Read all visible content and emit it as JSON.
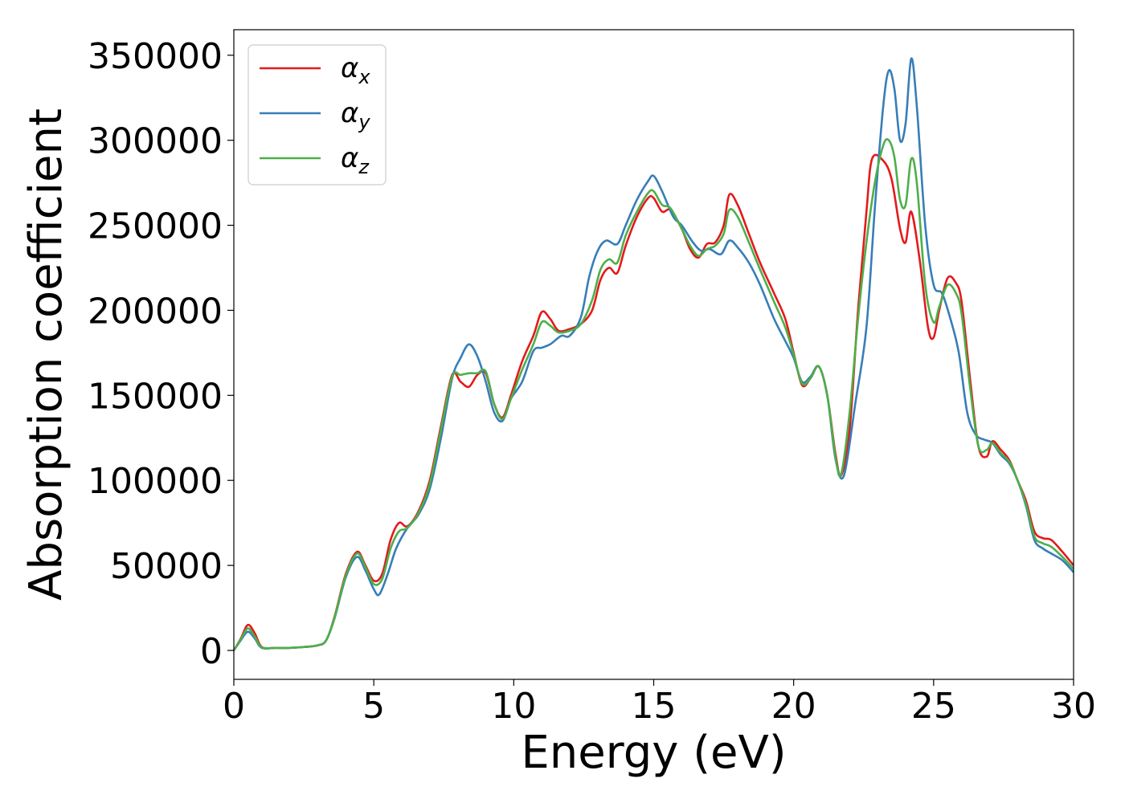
{
  "chart_data": {
    "type": "line",
    "title": "",
    "xlabel": "Energy (eV)",
    "ylabel": "Absorption coefficient",
    "xlim": [
      0,
      30
    ],
    "ylim": [
      -17000,
      365000
    ],
    "x_ticks": [
      0,
      5,
      10,
      15,
      20,
      25,
      30
    ],
    "y_ticks": [
      0,
      50000,
      100000,
      150000,
      200000,
      250000,
      300000,
      350000
    ],
    "grid": false,
    "legend_position": "top-left",
    "series": [
      {
        "name": "α_x",
        "symbol": "α",
        "subscript": "x",
        "color": "#e41a1c",
        "points": [
          [
            0,
            0
          ],
          [
            0.25,
            7000
          ],
          [
            0.5,
            15000
          ],
          [
            0.75,
            10000
          ],
          [
            1.0,
            2000
          ],
          [
            1.5,
            1500
          ],
          [
            2.0,
            1500
          ],
          [
            2.5,
            2000
          ],
          [
            3.0,
            3000
          ],
          [
            3.3,
            6000
          ],
          [
            3.6,
            20000
          ],
          [
            4.0,
            45000
          ],
          [
            4.4,
            58000
          ],
          [
            4.7,
            50000
          ],
          [
            5.0,
            41000
          ],
          [
            5.3,
            45000
          ],
          [
            5.6,
            65000
          ],
          [
            5.9,
            75000
          ],
          [
            6.2,
            73000
          ],
          [
            6.6,
            82000
          ],
          [
            7.0,
            100000
          ],
          [
            7.4,
            132000
          ],
          [
            7.8,
            162000
          ],
          [
            8.1,
            158000
          ],
          [
            8.4,
            155000
          ],
          [
            8.7,
            162000
          ],
          [
            9.0,
            163000
          ],
          [
            9.3,
            145000
          ],
          [
            9.6,
            137000
          ],
          [
            9.9,
            150000
          ],
          [
            10.3,
            170000
          ],
          [
            10.7,
            185000
          ],
          [
            11.0,
            199000
          ],
          [
            11.3,
            195000
          ],
          [
            11.6,
            188000
          ],
          [
            12.0,
            189000
          ],
          [
            12.4,
            192000
          ],
          [
            12.8,
            200000
          ],
          [
            13.1,
            218000
          ],
          [
            13.4,
            225000
          ],
          [
            13.7,
            222000
          ],
          [
            14.0,
            238000
          ],
          [
            14.4,
            255000
          ],
          [
            14.8,
            266000
          ],
          [
            15.0,
            266000
          ],
          [
            15.3,
            258000
          ],
          [
            15.6,
            259000
          ],
          [
            16.0,
            248000
          ],
          [
            16.3,
            236000
          ],
          [
            16.6,
            231000
          ],
          [
            16.9,
            239000
          ],
          [
            17.2,
            240000
          ],
          [
            17.5,
            250000
          ],
          [
            17.7,
            268000
          ],
          [
            18.0,
            262000
          ],
          [
            18.4,
            245000
          ],
          [
            18.8,
            228000
          ],
          [
            19.3,
            210000
          ],
          [
            19.7,
            195000
          ],
          [
            20.0,
            175000
          ],
          [
            20.3,
            156000
          ],
          [
            20.6,
            160000
          ],
          [
            20.9,
            167000
          ],
          [
            21.2,
            150000
          ],
          [
            21.5,
            115000
          ],
          [
            21.7,
            103000
          ],
          [
            22.0,
            130000
          ],
          [
            22.3,
            200000
          ],
          [
            22.6,
            258000
          ],
          [
            22.8,
            289000
          ],
          [
            23.2,
            288000
          ],
          [
            23.5,
            277000
          ],
          [
            23.8,
            248000
          ],
          [
            24.0,
            240000
          ],
          [
            24.2,
            258000
          ],
          [
            24.5,
            230000
          ],
          [
            24.8,
            190000
          ],
          [
            25.0,
            184000
          ],
          [
            25.2,
            200000
          ],
          [
            25.5,
            219000
          ],
          [
            25.8,
            216000
          ],
          [
            26.0,
            205000
          ],
          [
            26.3,
            160000
          ],
          [
            26.6,
            120000
          ],
          [
            26.9,
            114000
          ],
          [
            27.1,
            123000
          ],
          [
            27.4,
            118000
          ],
          [
            27.7,
            112000
          ],
          [
            28.0,
            100000
          ],
          [
            28.3,
            88000
          ],
          [
            28.6,
            70000
          ],
          [
            28.9,
            66000
          ],
          [
            29.2,
            65000
          ],
          [
            29.6,
            58000
          ],
          [
            30.0,
            50000
          ]
        ]
      },
      {
        "name": "α_y",
        "symbol": "α",
        "subscript": "y",
        "color": "#377eb8",
        "points": [
          [
            0,
            0
          ],
          [
            0.25,
            6000
          ],
          [
            0.5,
            11000
          ],
          [
            0.75,
            7000
          ],
          [
            1.0,
            1500
          ],
          [
            1.5,
            1500
          ],
          [
            2.0,
            1500
          ],
          [
            2.5,
            2000
          ],
          [
            3.0,
            3000
          ],
          [
            3.3,
            6000
          ],
          [
            3.6,
            19000
          ],
          [
            4.0,
            43000
          ],
          [
            4.4,
            55000
          ],
          [
            4.7,
            47000
          ],
          [
            5.0,
            36000
          ],
          [
            5.2,
            33000
          ],
          [
            5.5,
            45000
          ],
          [
            5.8,
            60000
          ],
          [
            6.2,
            72000
          ],
          [
            6.6,
            80000
          ],
          [
            7.0,
            95000
          ],
          [
            7.4,
            125000
          ],
          [
            7.8,
            160000
          ],
          [
            8.1,
            172000
          ],
          [
            8.4,
            180000
          ],
          [
            8.7,
            173000
          ],
          [
            9.0,
            158000
          ],
          [
            9.3,
            140000
          ],
          [
            9.6,
            135000
          ],
          [
            9.9,
            148000
          ],
          [
            10.3,
            158000
          ],
          [
            10.7,
            176000
          ],
          [
            11.0,
            178000
          ],
          [
            11.3,
            180000
          ],
          [
            11.7,
            185000
          ],
          [
            12.0,
            185000
          ],
          [
            12.4,
            196000
          ],
          [
            12.7,
            220000
          ],
          [
            13.0,
            235000
          ],
          [
            13.3,
            241000
          ],
          [
            13.7,
            239000
          ],
          [
            14.0,
            250000
          ],
          [
            14.4,
            265000
          ],
          [
            14.8,
            276000
          ],
          [
            15.0,
            279000
          ],
          [
            15.3,
            270000
          ],
          [
            15.7,
            255000
          ],
          [
            16.0,
            250000
          ],
          [
            16.4,
            240000
          ],
          [
            16.7,
            235000
          ],
          [
            17.0,
            236000
          ],
          [
            17.4,
            233000
          ],
          [
            17.7,
            241000
          ],
          [
            18.0,
            237000
          ],
          [
            18.4,
            228000
          ],
          [
            18.8,
            215000
          ],
          [
            19.3,
            195000
          ],
          [
            19.7,
            182000
          ],
          [
            20.0,
            172000
          ],
          [
            20.3,
            158000
          ],
          [
            20.6,
            161000
          ],
          [
            20.9,
            167000
          ],
          [
            21.2,
            150000
          ],
          [
            21.5,
            112000
          ],
          [
            21.8,
            103000
          ],
          [
            22.2,
            145000
          ],
          [
            22.6,
            190000
          ],
          [
            22.9,
            260000
          ],
          [
            23.2,
            320000
          ],
          [
            23.4,
            341000
          ],
          [
            23.6,
            330000
          ],
          [
            23.8,
            300000
          ],
          [
            24.0,
            310000
          ],
          [
            24.2,
            348000
          ],
          [
            24.4,
            320000
          ],
          [
            24.7,
            250000
          ],
          [
            25.0,
            215000
          ],
          [
            25.3,
            210000
          ],
          [
            25.6,
            195000
          ],
          [
            25.9,
            175000
          ],
          [
            26.2,
            140000
          ],
          [
            26.5,
            127000
          ],
          [
            26.8,
            124000
          ],
          [
            27.1,
            122000
          ],
          [
            27.4,
            115000
          ],
          [
            27.7,
            110000
          ],
          [
            28.0,
            100000
          ],
          [
            28.3,
            85000
          ],
          [
            28.6,
            65000
          ],
          [
            28.9,
            60000
          ],
          [
            29.2,
            57000
          ],
          [
            29.6,
            53000
          ],
          [
            30.0,
            46000
          ]
        ]
      },
      {
        "name": "α_z",
        "symbol": "α",
        "subscript": "z",
        "color": "#4daf4a",
        "points": [
          [
            0,
            0
          ],
          [
            0.25,
            6500
          ],
          [
            0.5,
            13000
          ],
          [
            0.75,
            8000
          ],
          [
            1.0,
            1800
          ],
          [
            1.5,
            1500
          ],
          [
            2.0,
            1500
          ],
          [
            2.5,
            2000
          ],
          [
            3.0,
            3000
          ],
          [
            3.3,
            6000
          ],
          [
            3.6,
            19500
          ],
          [
            4.0,
            44000
          ],
          [
            4.4,
            57000
          ],
          [
            4.7,
            49000
          ],
          [
            5.0,
            39000
          ],
          [
            5.3,
            42000
          ],
          [
            5.6,
            60000
          ],
          [
            5.9,
            70000
          ],
          [
            6.2,
            72000
          ],
          [
            6.6,
            81000
          ],
          [
            7.0,
            98000
          ],
          [
            7.4,
            130000
          ],
          [
            7.8,
            161000
          ],
          [
            8.1,
            162000
          ],
          [
            8.4,
            163000
          ],
          [
            8.7,
            163000
          ],
          [
            9.0,
            164000
          ],
          [
            9.3,
            145000
          ],
          [
            9.6,
            136000
          ],
          [
            9.9,
            148000
          ],
          [
            10.3,
            165000
          ],
          [
            10.7,
            180000
          ],
          [
            11.0,
            193000
          ],
          [
            11.3,
            191000
          ],
          [
            11.6,
            187000
          ],
          [
            12.0,
            188000
          ],
          [
            12.4,
            192000
          ],
          [
            12.8,
            206000
          ],
          [
            13.1,
            224000
          ],
          [
            13.4,
            230000
          ],
          [
            13.7,
            228000
          ],
          [
            14.0,
            244000
          ],
          [
            14.4,
            258000
          ],
          [
            14.8,
            269000
          ],
          [
            15.0,
            270000
          ],
          [
            15.3,
            262000
          ],
          [
            15.6,
            260000
          ],
          [
            16.0,
            248000
          ],
          [
            16.3,
            238000
          ],
          [
            16.6,
            232000
          ],
          [
            16.9,
            236000
          ],
          [
            17.2,
            238000
          ],
          [
            17.5,
            245000
          ],
          [
            17.7,
            259000
          ],
          [
            18.0,
            255000
          ],
          [
            18.4,
            240000
          ],
          [
            18.8,
            224000
          ],
          [
            19.3,
            205000
          ],
          [
            19.7,
            190000
          ],
          [
            20.0,
            174000
          ],
          [
            20.3,
            157000
          ],
          [
            20.6,
            160000
          ],
          [
            20.9,
            167000
          ],
          [
            21.2,
            150000
          ],
          [
            21.5,
            113000
          ],
          [
            21.7,
            104000
          ],
          [
            22.0,
            140000
          ],
          [
            22.3,
            195000
          ],
          [
            22.6,
            240000
          ],
          [
            22.9,
            275000
          ],
          [
            23.2,
            297000
          ],
          [
            23.4,
            300000
          ],
          [
            23.6,
            290000
          ],
          [
            23.8,
            265000
          ],
          [
            24.0,
            262000
          ],
          [
            24.2,
            289000
          ],
          [
            24.4,
            275000
          ],
          [
            24.7,
            215000
          ],
          [
            25.0,
            193000
          ],
          [
            25.2,
            202000
          ],
          [
            25.5,
            215000
          ],
          [
            25.8,
            210000
          ],
          [
            26.0,
            198000
          ],
          [
            26.3,
            155000
          ],
          [
            26.6,
            120000
          ],
          [
            26.9,
            118000
          ],
          [
            27.1,
            122000
          ],
          [
            27.4,
            116000
          ],
          [
            27.7,
            111000
          ],
          [
            28.0,
            100000
          ],
          [
            28.3,
            86000
          ],
          [
            28.6,
            67000
          ],
          [
            28.9,
            63000
          ],
          [
            29.2,
            61000
          ],
          [
            29.6,
            55000
          ],
          [
            30.0,
            48000
          ]
        ]
      }
    ]
  }
}
